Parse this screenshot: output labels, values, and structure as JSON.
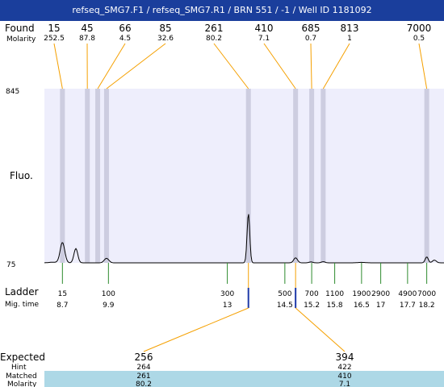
{
  "header": {
    "title": "refseq_SMG7.F1 / refseq_SMG7.R1 / BRN 551 / -1 / Well ID 1181092"
  },
  "labels": {
    "found": "Found",
    "molarity": "Molarity",
    "fluo": "Fluo.",
    "ladder": "Ladder",
    "mig_time": "Mig. time",
    "expected": "Expected",
    "hint": "Hint",
    "matched": "Matched",
    "molarity_bottom": "Molarity"
  },
  "colors": {
    "title_bg": "#1a3e9c",
    "plot_bg": "#eeeefc",
    "band": "#cdcde0",
    "orange": "#f5a000",
    "ladder_green": "#2e8b2e",
    "marker_blue": "#1f3aa8",
    "matched_band": "#add8e6"
  },
  "chart_data": {
    "type": "line",
    "title": "",
    "ylabel": "Fluo.",
    "y_ticks": [
      "845",
      "75"
    ],
    "ylim": [
      75,
      845
    ],
    "found_peaks": [
      {
        "size": "15",
        "molarity": "252.5",
        "mig_time": 8.7
      },
      {
        "size": "45",
        "molarity": "87.8",
        "mig_time": 9.35
      },
      {
        "size": "66",
        "molarity": "4.5",
        "mig_time": 9.62
      },
      {
        "size": "85",
        "molarity": "32.6",
        "mig_time": 9.85
      },
      {
        "size": "261",
        "molarity": "80.2",
        "mig_time": 13.55
      },
      {
        "size": "410",
        "molarity": "7.1",
        "mig_time": 14.78
      },
      {
        "size": "685",
        "molarity": "0.7",
        "mig_time": 15.2
      },
      {
        "size": "813",
        "molarity": "1",
        "mig_time": 15.5
      },
      {
        "size": "7000",
        "molarity": "0.5",
        "mig_time": 18.2
      }
    ],
    "ladder": [
      {
        "size": "15",
        "mig_time": "8.7",
        "t": 8.7
      },
      {
        "size": "100",
        "mig_time": "9.9",
        "t": 9.9
      },
      {
        "size": "300",
        "mig_time": "13",
        "t": 13.0
      },
      {
        "size": "500",
        "mig_time": "14.5",
        "t": 14.5
      },
      {
        "size": "700",
        "mig_time": "15.2",
        "t": 15.2
      },
      {
        "size": "1100",
        "mig_time": "15.8",
        "t": 15.8
      },
      {
        "size": "1900",
        "mig_time": "16.5",
        "t": 16.5
      },
      {
        "size": "2900",
        "mig_time": "17",
        "t": 17.0
      },
      {
        "size": "4900",
        "mig_time": "17.7",
        "t": 17.7
      },
      {
        "size": "7000",
        "mig_time": "18.2",
        "t": 18.2
      }
    ],
    "expected": [
      {
        "size": "256",
        "hint": "264",
        "matched": "261",
        "molarity": "80.2",
        "t": 13.55
      },
      {
        "size": "394",
        "hint": "422",
        "matched": "410",
        "molarity": "7.1",
        "t": 14.78
      }
    ],
    "trace_peaks": [
      {
        "t": 8.7,
        "h": 90,
        "w": 0.06
      },
      {
        "t": 9.05,
        "h": 63,
        "w": 0.05
      },
      {
        "t": 9.85,
        "h": 20,
        "w": 0.06
      },
      {
        "t": 13.55,
        "h": 218,
        "w": 0.035
      },
      {
        "t": 14.78,
        "h": 22,
        "w": 0.05
      },
      {
        "t": 15.18,
        "h": 4,
        "w": 0.05
      },
      {
        "t": 15.5,
        "h": 5,
        "w": 0.05
      },
      {
        "t": 16.5,
        "h": 2,
        "w": 0.1
      },
      {
        "t": 18.2,
        "h": 26,
        "w": 0.04
      },
      {
        "t": 18.4,
        "h": 12,
        "w": 0.05
      }
    ]
  }
}
